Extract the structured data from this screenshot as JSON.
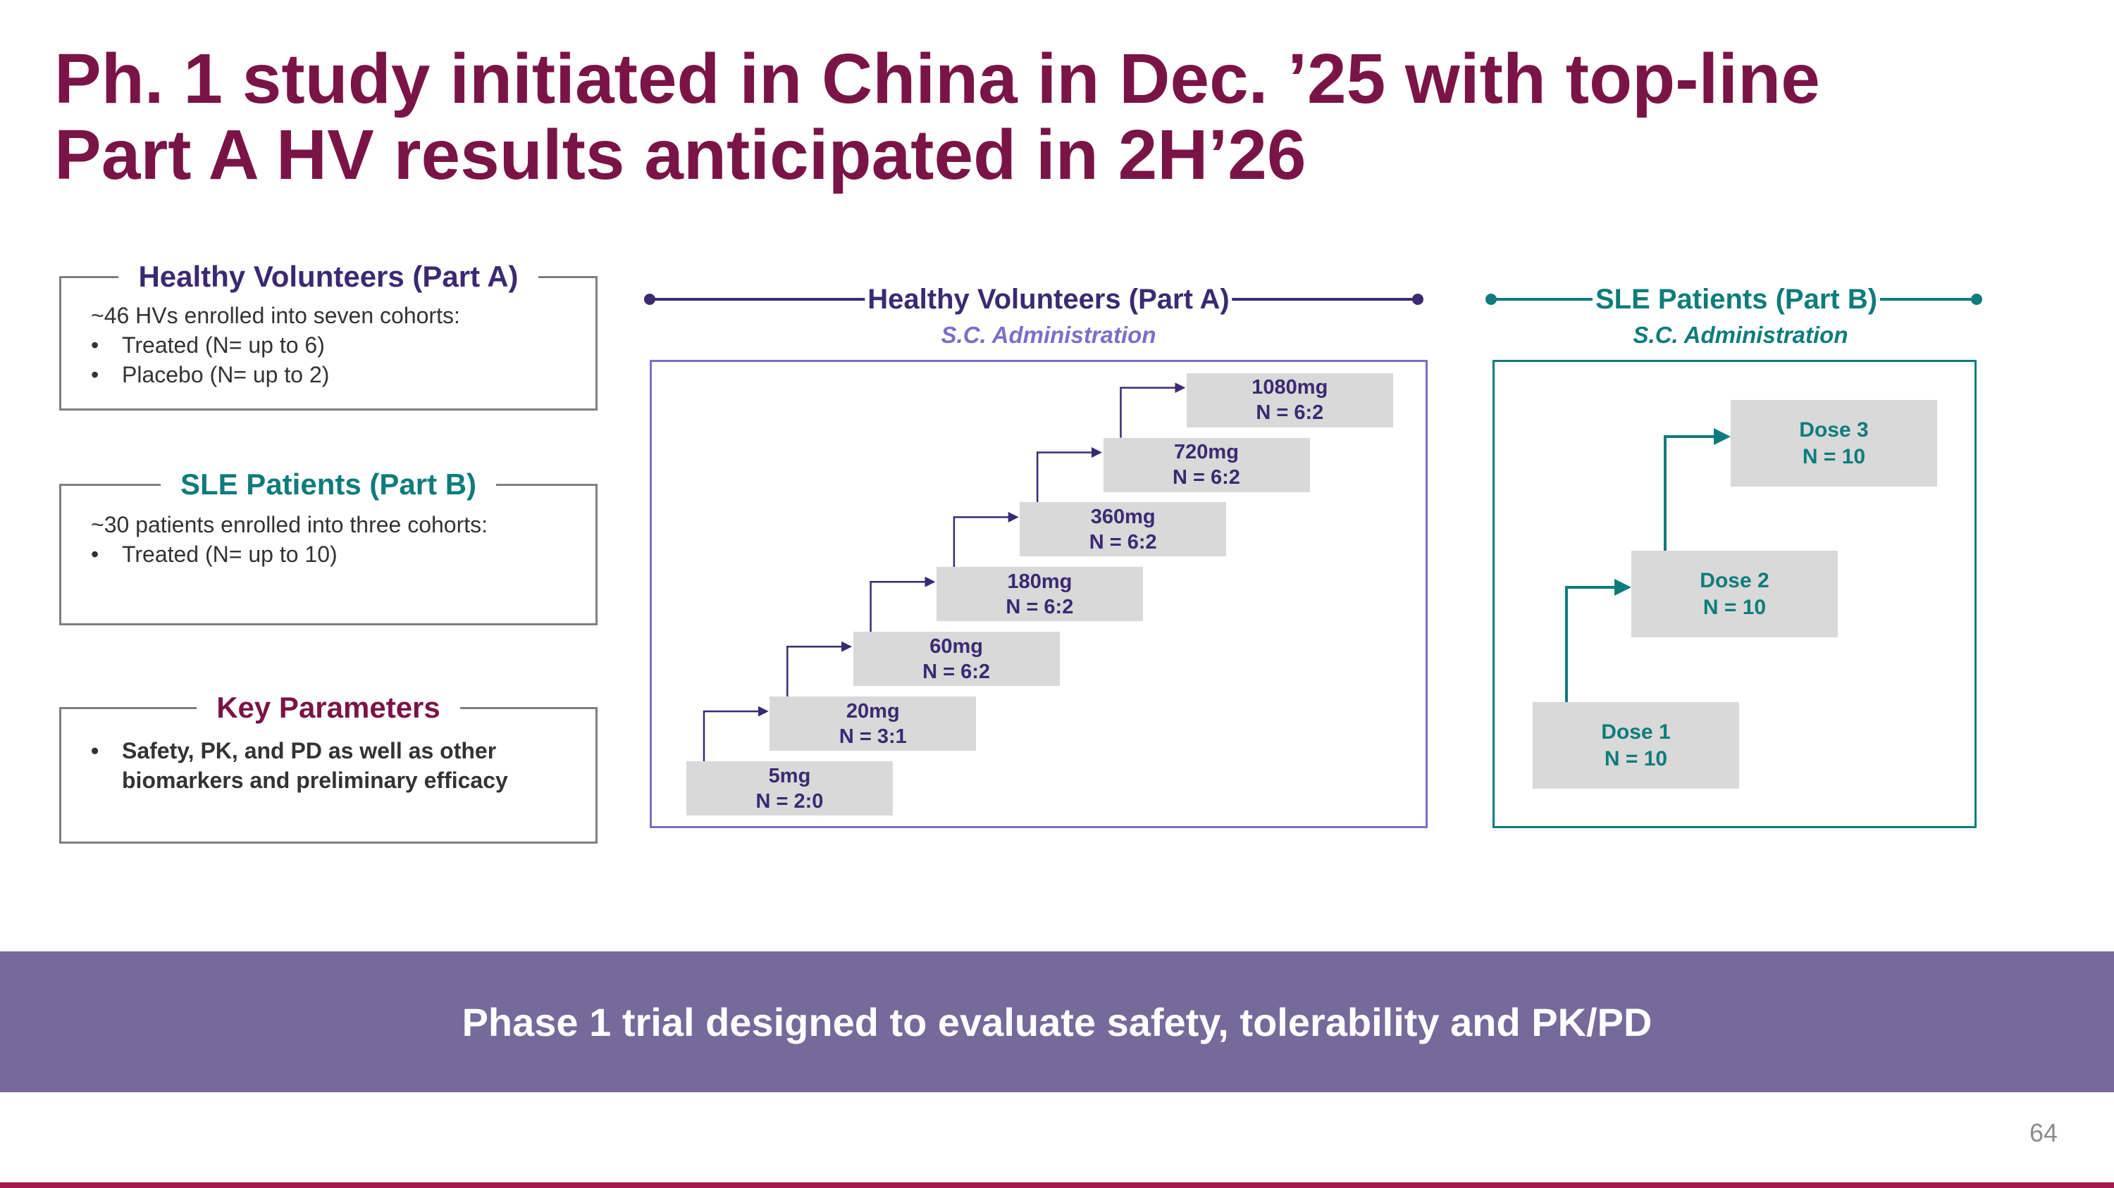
{
  "title": {
    "line1": "Ph. 1 study initiated in China in Dec. ’25 with top-line",
    "line2": "Part A HV results anticipated in 2H’26"
  },
  "left_boxes": [
    {
      "heading": "Healthy Volunteers (Part A)",
      "color": "#3a2a72",
      "intro": "~46 HVs enrolled into seven cohorts:",
      "bullets": [
        "Treated (N= up to 6)",
        "Placebo (N= up to 2)"
      ]
    },
    {
      "heading": "SLE Patients (Part B)",
      "color": "#0e7c7b",
      "intro": "~30 patients enrolled into three cohorts:",
      "bullets": [
        "Treated (N= up to 10)"
      ]
    },
    {
      "heading": "Key Parameters",
      "color": "#7a1446",
      "bullets": [
        "Safety, PK, and PD as well as other",
        "biomarkers and preliminary efficacy"
      ]
    }
  ],
  "part_a": {
    "title": "Healthy Volunteers (Part A)",
    "subtitle": "S.C. Administration",
    "color": "#3a2a72",
    "frame_color": "#7b6fc9",
    "cohorts": [
      {
        "dose": "5mg",
        "n": "N = 2:0"
      },
      {
        "dose": "20mg",
        "n": "N = 3:1"
      },
      {
        "dose": "60mg",
        "n": "N = 6:2"
      },
      {
        "dose": "180mg",
        "n": "N = 6:2"
      },
      {
        "dose": "360mg",
        "n": "N = 6:2"
      },
      {
        "dose": "720mg",
        "n": "N = 6:2"
      },
      {
        "dose": "1080mg",
        "n": "N = 6:2"
      }
    ]
  },
  "part_b": {
    "title": "SLE Patients (Part B)",
    "subtitle": "S.C. Administration",
    "color": "#0e7c7b",
    "cohorts": [
      {
        "dose": "Dose 1",
        "n": "N = 10"
      },
      {
        "dose": "Dose 2",
        "n": "N = 10"
      },
      {
        "dose": "Dose 3",
        "n": "N = 10"
      }
    ]
  },
  "banner": "Phase 1 trial designed to evaluate safety, tolerability and PK/PD",
  "page_number": "64"
}
